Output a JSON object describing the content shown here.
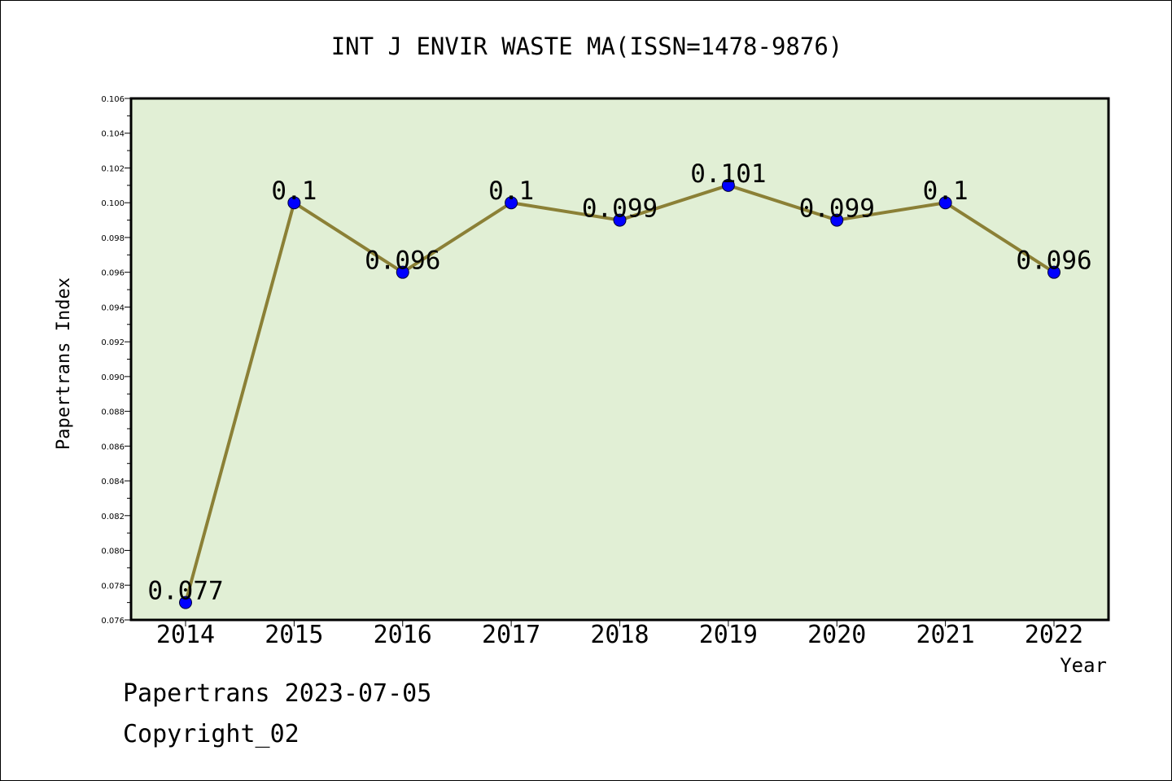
{
  "chart_data": {
    "type": "line",
    "title": "INT J ENVIR WASTE MA(ISSN=1478-9876)",
    "xlabel": "Year",
    "ylabel": "Papertrans Index",
    "categories": [
      "2014",
      "2015",
      "2016",
      "2017",
      "2018",
      "2019",
      "2020",
      "2021",
      "2022"
    ],
    "values": [
      0.077,
      0.1,
      0.096,
      0.1,
      0.099,
      0.101,
      0.099,
      0.1,
      0.096
    ],
    "data_labels": [
      "0.077",
      "0.1",
      "0.096",
      "0.1",
      "0.099",
      "0.101",
      "0.099",
      "0.1",
      "0.096"
    ],
    "ylim": [
      0.076,
      0.106
    ],
    "yticks": [
      "0.076",
      "0.078",
      "0.080",
      "0.082",
      "0.084",
      "0.086",
      "0.088",
      "0.090",
      "0.092",
      "0.094",
      "0.096",
      "0.098",
      "0.100",
      "0.102",
      "0.104",
      "0.106"
    ],
    "grid": false,
    "legend": "none",
    "colors": {
      "plot_background": "#e1efd5",
      "line": "#8b8036",
      "marker": "#0000ff",
      "axis": "#000000"
    }
  },
  "footer": {
    "line1": "Papertrans 2023-07-05",
    "line2": "Copyright_02"
  }
}
